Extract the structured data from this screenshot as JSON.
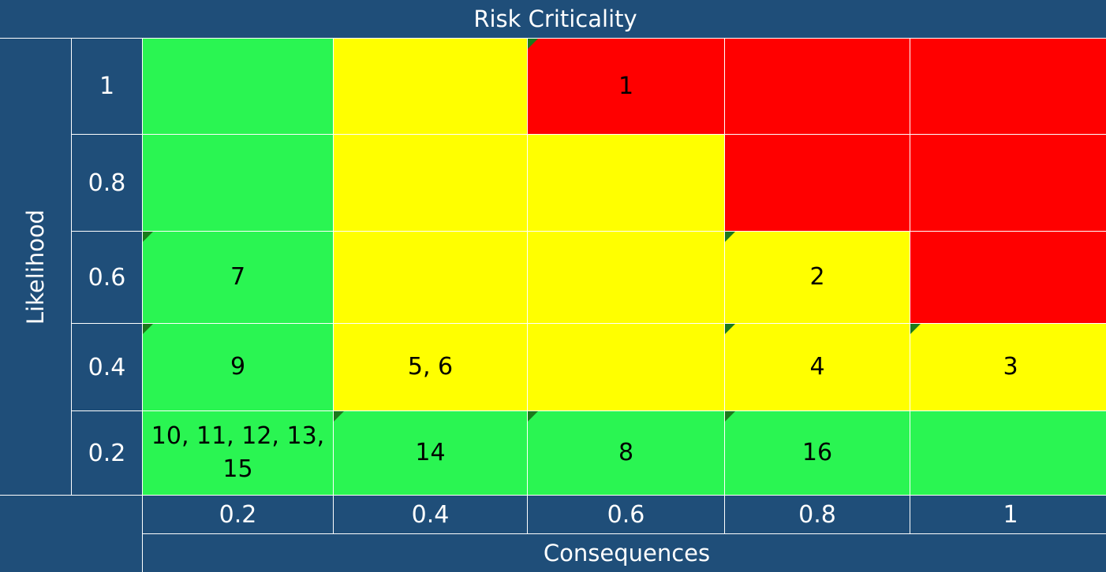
{
  "chart_data": {
    "type": "heatmap",
    "title": "Risk Criticality",
    "xlabel": "Consequences",
    "ylabel": "Likelihood",
    "x_ticks": [
      "0.2",
      "0.4",
      "0.6",
      "0.8",
      "1"
    ],
    "y_ticks": [
      "1",
      "0.8",
      "0.6",
      "0.4",
      "0.2"
    ],
    "colors": {
      "low": "#2af552",
      "medium": "#ffff00",
      "high": "#ff0000",
      "header": "#1f4e79"
    },
    "rows": [
      {
        "likelihood": "1",
        "cells": [
          {
            "consequence": "0.2",
            "level": "green",
            "risks": "",
            "flag": false
          },
          {
            "consequence": "0.4",
            "level": "yellow",
            "risks": "",
            "flag": false
          },
          {
            "consequence": "0.6",
            "level": "red",
            "risks": "1",
            "flag": true
          },
          {
            "consequence": "0.8",
            "level": "red",
            "risks": "",
            "flag": false
          },
          {
            "consequence": "1",
            "level": "red",
            "risks": "",
            "flag": false
          }
        ]
      },
      {
        "likelihood": "0.8",
        "cells": [
          {
            "consequence": "0.2",
            "level": "green",
            "risks": "",
            "flag": false
          },
          {
            "consequence": "0.4",
            "level": "yellow",
            "risks": "",
            "flag": false
          },
          {
            "consequence": "0.6",
            "level": "yellow",
            "risks": "",
            "flag": false
          },
          {
            "consequence": "0.8",
            "level": "red",
            "risks": "",
            "flag": false
          },
          {
            "consequence": "1",
            "level": "red",
            "risks": "",
            "flag": false
          }
        ]
      },
      {
        "likelihood": "0.6",
        "cells": [
          {
            "consequence": "0.2",
            "level": "green",
            "risks": "7",
            "flag": true
          },
          {
            "consequence": "0.4",
            "level": "yellow",
            "risks": "",
            "flag": false
          },
          {
            "consequence": "0.6",
            "level": "yellow",
            "risks": "",
            "flag": false
          },
          {
            "consequence": "0.8",
            "level": "yellow",
            "risks": "2",
            "flag": true
          },
          {
            "consequence": "1",
            "level": "red",
            "risks": "",
            "flag": false
          }
        ]
      },
      {
        "likelihood": "0.4",
        "cells": [
          {
            "consequence": "0.2",
            "level": "green",
            "risks": "9",
            "flag": true
          },
          {
            "consequence": "0.4",
            "level": "yellow",
            "risks": "5, 6",
            "flag": false
          },
          {
            "consequence": "0.6",
            "level": "yellow",
            "risks": "",
            "flag": false
          },
          {
            "consequence": "0.8",
            "level": "yellow",
            "risks": "4",
            "flag": true
          },
          {
            "consequence": "1",
            "level": "yellow",
            "risks": "3",
            "flag": true
          }
        ]
      },
      {
        "likelihood": "0.2",
        "cells": [
          {
            "consequence": "0.2",
            "level": "green",
            "risks": "10, 11, 12, 13, 15",
            "flag": false
          },
          {
            "consequence": "0.4",
            "level": "green",
            "risks": "14",
            "flag": true
          },
          {
            "consequence": "0.6",
            "level": "green",
            "risks": "8",
            "flag": true
          },
          {
            "consequence": "0.8",
            "level": "green",
            "risks": "16",
            "flag": true
          },
          {
            "consequence": "1",
            "level": "green",
            "risks": "",
            "flag": false
          }
        ]
      }
    ]
  }
}
